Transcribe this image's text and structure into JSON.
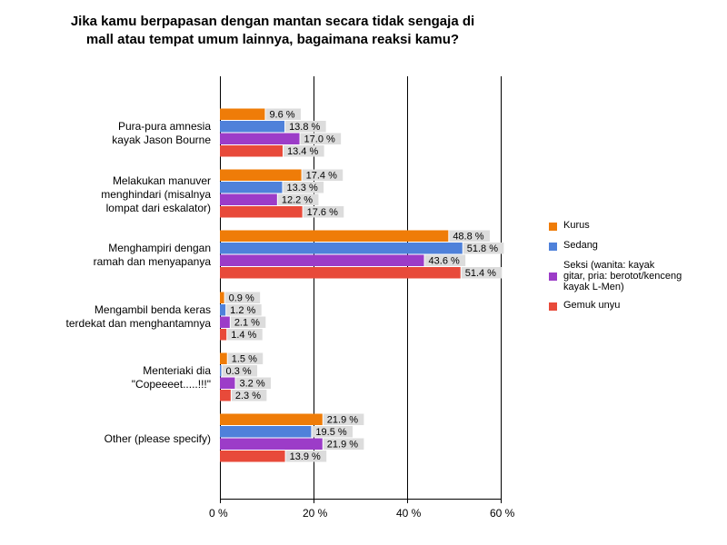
{
  "chart_data": {
    "type": "bar",
    "orientation": "horizontal",
    "title_lines": [
      "Jika kamu berpapasan dengan mantan secara tidak sengaja di",
      "mall atau tempat umum lainnya, bagaimana reaksi kamu?"
    ],
    "categories": [
      [
        "Pura-pura amnesia",
        "kayak Jason Bourne"
      ],
      [
        "Melakukan manuver",
        "menghindari (misalnya",
        "lompat dari eskalator)"
      ],
      [
        "Menghampiri dengan",
        "ramah dan menyapanya"
      ],
      [
        "Mengambil benda keras",
        "terdekat dan menghantamnya"
      ],
      [
        "Menteriaki dia",
        "\"Copeeeet.....!!!\""
      ],
      [
        "Other (please specify)"
      ]
    ],
    "series": [
      {
        "name": "Kurus",
        "color": "#ef7c08",
        "values": [
          9.6,
          17.4,
          48.8,
          0.9,
          1.5,
          21.9
        ]
      },
      {
        "name": "Sedang",
        "color": "#4f81da",
        "values": [
          13.8,
          13.3,
          51.8,
          1.2,
          0.3,
          19.5
        ]
      },
      {
        "name": "Seksi (wanita: kayak gitar, pria: berotot/kenceng kayak L-Men)",
        "color": "#9c3cc8",
        "values": [
          17.0,
          12.2,
          43.6,
          2.1,
          3.2,
          21.9
        ]
      },
      {
        "name": "Gemuk unyu",
        "color": "#e84a3a",
        "values": [
          13.4,
          17.6,
          51.4,
          1.4,
          2.3,
          13.9
        ]
      }
    ],
    "legend_lines": [
      [
        "Kurus"
      ],
      [
        "Sedang"
      ],
      [
        "Seksi (wanita: kayak",
        "gitar, pria: berotot/kenceng",
        "kayak L-Men)"
      ],
      [
        "Gemuk unyu"
      ]
    ],
    "value_suffix": " %",
    "xlim": [
      0,
      60
    ],
    "xticks": [
      0,
      20,
      40,
      60
    ],
    "xtick_labels": [
      "0 %",
      "20 %",
      "40 %",
      "60 %"
    ],
    "grid": true,
    "legend_position": "right"
  }
}
